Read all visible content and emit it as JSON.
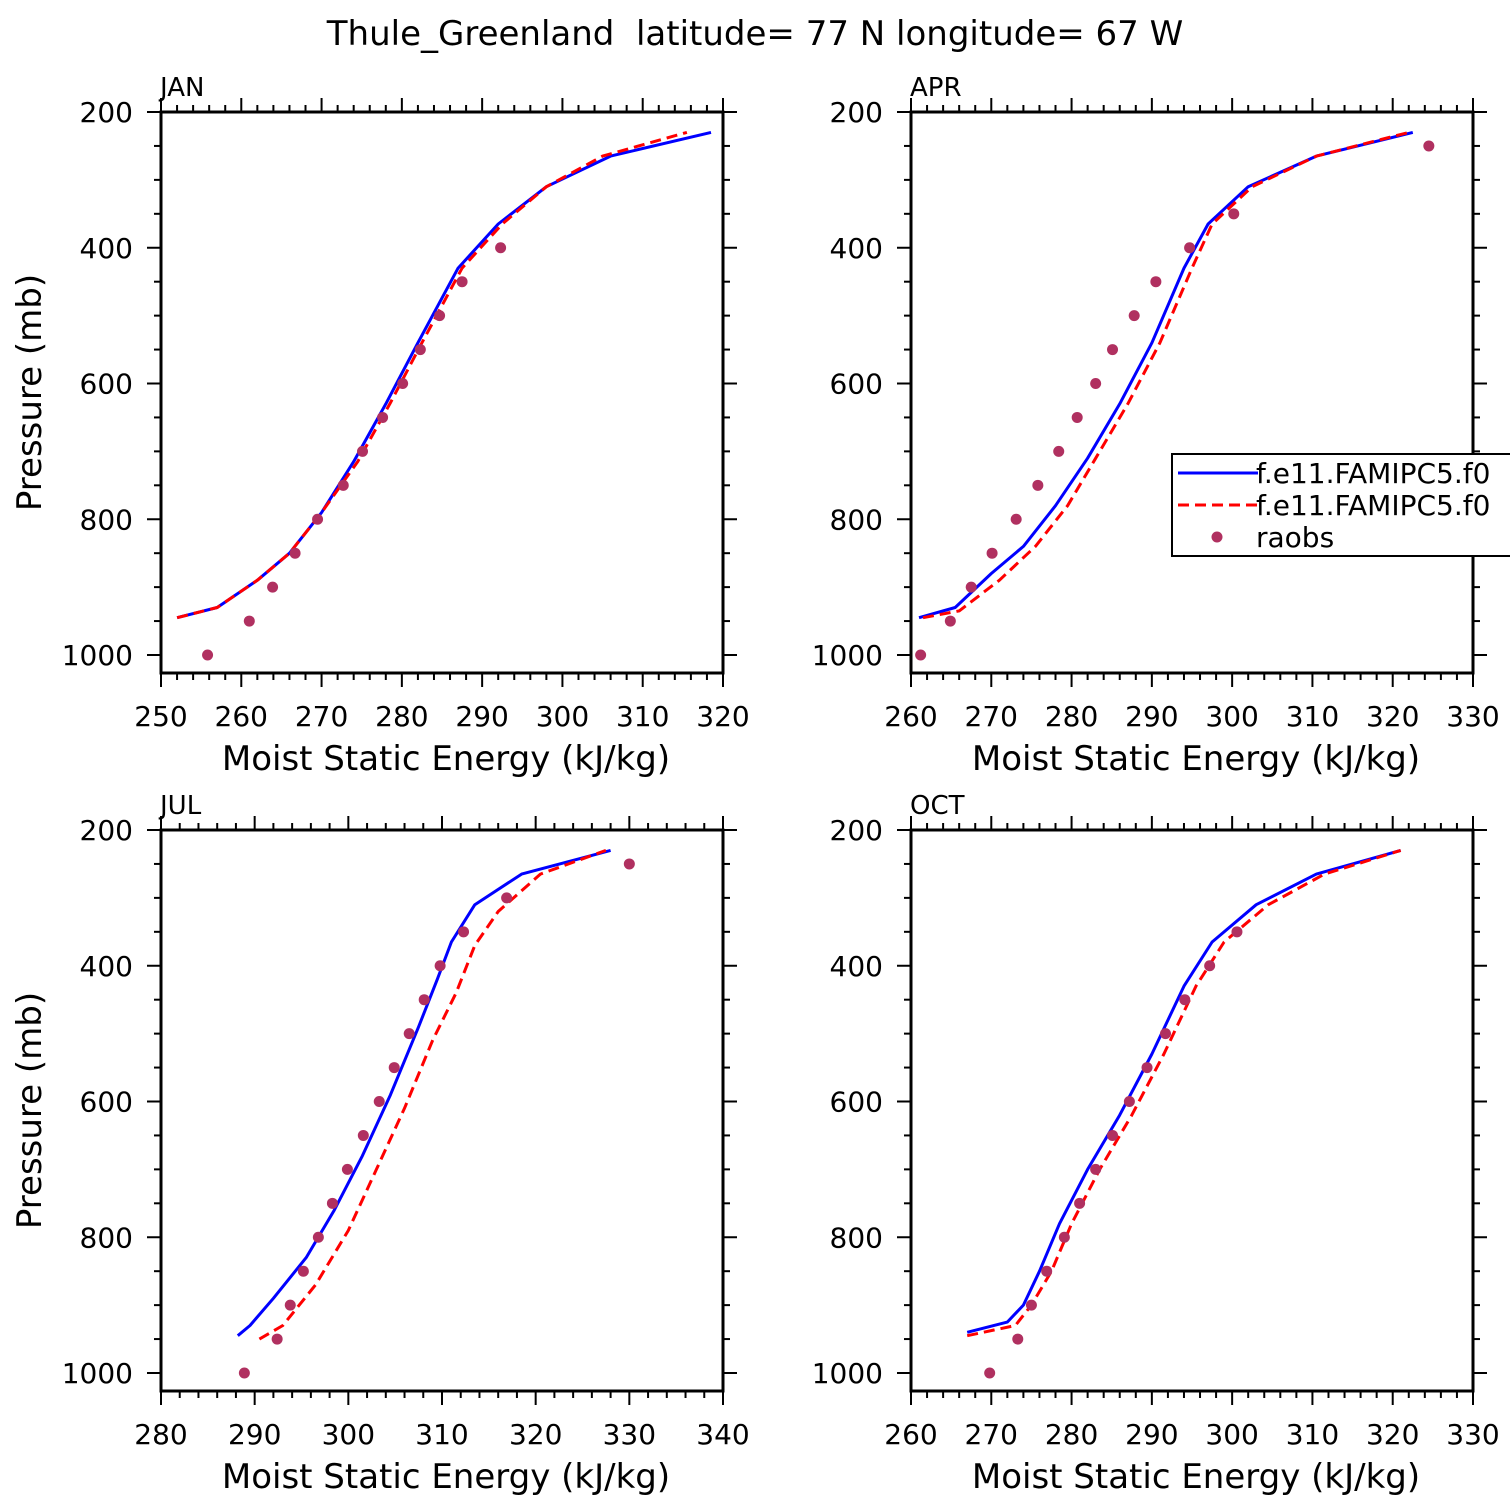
{
  "title": "Thule_Greenland  latitude= 77 N longitude= 67 W",
  "colors": {
    "model1": "#0000ff",
    "model2": "#ff0000",
    "raobs": "#b03060",
    "axis": "#000000"
  },
  "legend": {
    "location": "right edge of APR panel",
    "entries": [
      {
        "label": "f.e11.FAMIPC5.f0",
        "style": "solid",
        "color": "#0000ff"
      },
      {
        "label": "f.e11.FAMIPC5.f0",
        "style": "dashed",
        "color": "#ff0000"
      },
      {
        "label": "raobs",
        "style": "dot",
        "color": "#b03060"
      }
    ]
  },
  "chart_data": [
    {
      "type": "line",
      "panel": "JAN",
      "xlabel": "Moist Static Energy (kJ/kg)",
      "ylabel": "Pressure (mb)",
      "xlim": [
        250,
        320
      ],
      "ylim": [
        200,
        1000
      ],
      "xticks": [
        250,
        260,
        270,
        280,
        290,
        300,
        310,
        320
      ],
      "yticks": [
        200,
        400,
        600,
        800,
        1000
      ],
      "y_inverted": true,
      "series": [
        {
          "name": "f.e11.FAMIPC5.f0 (solid)",
          "x": [
            252,
            257,
            262,
            266,
            270,
            274,
            278,
            282,
            287,
            292,
            298,
            306,
            318.5
          ],
          "y": [
            945,
            930,
            890,
            850,
            790,
            715,
            630,
            540,
            430,
            365,
            310,
            265,
            230
          ]
        },
        {
          "name": "f.e11.FAMIPC5.f0 (dashed)",
          "x": [
            252,
            257,
            262,
            266,
            270,
            274.5,
            278.5,
            282.5,
            287.5,
            292.5,
            298,
            305,
            315.5
          ],
          "y": [
            945,
            930,
            890,
            850,
            790,
            715,
            630,
            540,
            430,
            365,
            310,
            265,
            230
          ]
        },
        {
          "name": "raobs",
          "x": [
            255.8,
            261,
            263.9,
            266.7,
            269.5,
            272.7,
            275.1,
            277.6,
            280.1,
            282.3,
            284.7,
            287.5,
            292.3
          ],
          "y": [
            1000,
            950,
            900,
            850,
            800,
            750,
            700,
            650,
            600,
            550,
            500,
            450,
            400
          ]
        }
      ]
    },
    {
      "type": "line",
      "panel": "APR",
      "xlabel": "Moist Static Energy (kJ/kg)",
      "ylabel": "",
      "xlim": [
        260,
        330
      ],
      "ylim": [
        200,
        1000
      ],
      "xticks": [
        260,
        270,
        280,
        290,
        300,
        310,
        320,
        330
      ],
      "yticks": [
        200,
        400,
        600,
        800,
        1000
      ],
      "y_inverted": true,
      "series": [
        {
          "name": "f.e11.FAMIPC5.f0 (solid)",
          "x": [
            261,
            265.5,
            270,
            274,
            278,
            282,
            286,
            290,
            294,
            297,
            302,
            310.5,
            322.5
          ],
          "y": [
            945,
            930,
            880,
            840,
            780,
            710,
            630,
            540,
            430,
            365,
            310,
            265,
            230
          ]
        },
        {
          "name": "f.e11.FAMIPC5.f0 (dashed)",
          "x": [
            261.5,
            266,
            271,
            275.5,
            279.5,
            283,
            287,
            291,
            295,
            297.5,
            302.5,
            310.5,
            322
          ],
          "y": [
            945,
            935,
            890,
            840,
            780,
            710,
            630,
            540,
            430,
            365,
            310,
            265,
            230
          ]
        },
        {
          "name": "raobs",
          "x": [
            261.2,
            264.9,
            267.5,
            270.1,
            273.1,
            275.8,
            278.4,
            280.7,
            283,
            285.1,
            287.8,
            290.5,
            294.7,
            300.2,
            324.5
          ],
          "y": [
            1000,
            950,
            900,
            850,
            800,
            750,
            700,
            650,
            600,
            550,
            500,
            450,
            400,
            350,
            250
          ]
        }
      ]
    },
    {
      "type": "line",
      "panel": "JUL",
      "xlabel": "Moist Static Energy (kJ/kg)",
      "ylabel": "Pressure (mb)",
      "xlim": [
        280,
        340
      ],
      "ylim": [
        200,
        1000
      ],
      "xticks": [
        280,
        290,
        300,
        310,
        320,
        330,
        340
      ],
      "yticks": [
        200,
        400,
        600,
        800,
        1000
      ],
      "y_inverted": true,
      "series": [
        {
          "name": "f.e11.FAMIPC5.f0 (solid)",
          "x": [
            288.2,
            289.5,
            292,
            295.5,
            298.5,
            301.5,
            304.5,
            307.5,
            309.5,
            311,
            313.5,
            318.5,
            328
          ],
          "y": [
            945,
            930,
            890,
            830,
            760,
            680,
            590,
            490,
            420,
            365,
            310,
            265,
            230
          ]
        },
        {
          "name": "f.e11.FAMIPC5.f0 (dashed)",
          "x": [
            290.5,
            293,
            296.5,
            300,
            303,
            306,
            309,
            311.5,
            313.5,
            316,
            320.5,
            327.5
          ],
          "y": [
            950,
            930,
            870,
            790,
            700,
            610,
            510,
            440,
            370,
            320,
            265,
            230
          ]
        },
        {
          "name": "raobs",
          "x": [
            288.9,
            292.4,
            293.8,
            295.2,
            296.8,
            298.3,
            299.9,
            301.6,
            303.3,
            304.9,
            306.5,
            308.1,
            309.8,
            312.3,
            316.9,
            330
          ],
          "y": [
            1000,
            950,
            900,
            850,
            800,
            750,
            700,
            650,
            600,
            550,
            500,
            450,
            400,
            350,
            300,
            250
          ]
        }
      ]
    },
    {
      "type": "line",
      "panel": "OCT",
      "xlabel": "Moist Static Energy (kJ/kg)",
      "ylabel": "",
      "xlim": [
        260,
        330
      ],
      "ylim": [
        200,
        1000
      ],
      "xticks": [
        260,
        270,
        280,
        290,
        300,
        310,
        320,
        330
      ],
      "yticks": [
        200,
        400,
        600,
        800,
        1000
      ],
      "y_inverted": true,
      "series": [
        {
          "name": "f.e11.FAMIPC5.f0 (solid)",
          "x": [
            267,
            272,
            274,
            276,
            278.5,
            282,
            286,
            290,
            294,
            297.5,
            303,
            310.5,
            321
          ],
          "y": [
            940,
            925,
            900,
            850,
            780,
            700,
            620,
            530,
            430,
            365,
            310,
            265,
            230
          ]
        },
        {
          "name": "f.e11.FAMIPC5.f0 (dashed)",
          "x": [
            267,
            273,
            275,
            277.5,
            280,
            283.5,
            287.5,
            291.5,
            295.5,
            299,
            304.5,
            311.5,
            321
          ],
          "y": [
            945,
            930,
            900,
            850,
            780,
            700,
            620,
            530,
            430,
            365,
            310,
            265,
            230
          ]
        },
        {
          "name": "raobs",
          "x": [
            269.8,
            273.3,
            275,
            276.9,
            279.1,
            281,
            283,
            285.1,
            287.2,
            289.4,
            291.7,
            294.1,
            297.2,
            300.6
          ],
          "y": [
            1000,
            950,
            900,
            850,
            800,
            750,
            700,
            650,
            600,
            550,
            500,
            450,
            400,
            350
          ]
        }
      ]
    }
  ]
}
